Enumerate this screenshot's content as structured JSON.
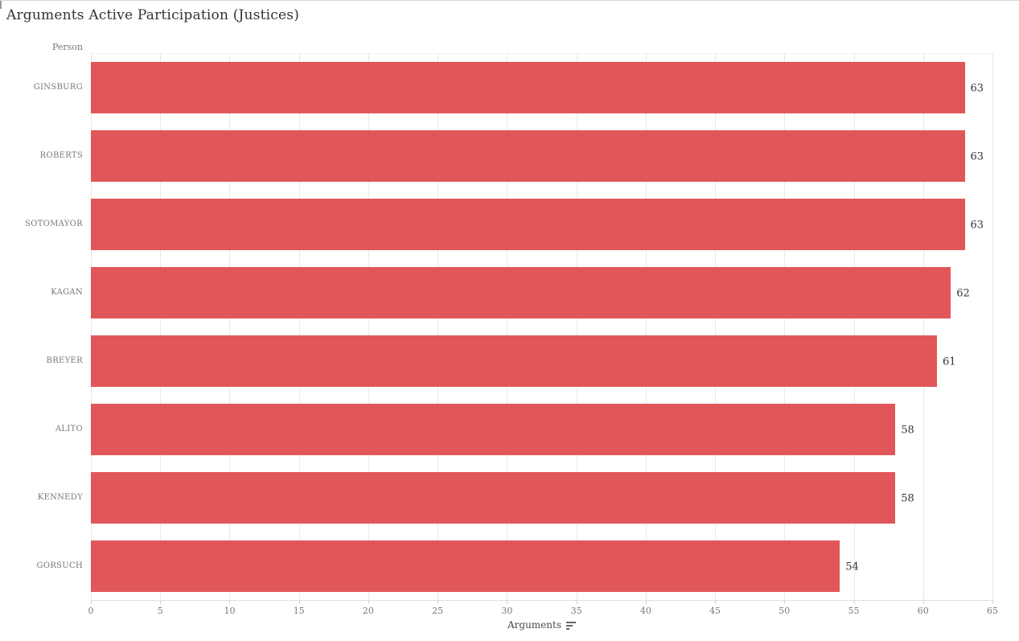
{
  "title": "Arguments Active Participation (Justices)",
  "axes": {
    "category_header": "Person",
    "value_axis_label": "Arguments",
    "sort_icon": "sort-descending-icon"
  },
  "colors": {
    "bar": "#e15759",
    "title_text": "#323232",
    "axis_text": "#787878",
    "value_label_text": "#333333",
    "gridline": "#e8e8e8"
  },
  "chart_data": {
    "type": "bar",
    "orientation": "horizontal",
    "title": "Arguments Active Participation (Justices)",
    "categories": [
      "GINSBURG",
      "ROBERTS",
      "SOTOMAYOR",
      "KAGAN",
      "BREYER",
      "ALITO",
      "KENNEDY",
      "GORSUCH"
    ],
    "values": [
      63,
      63,
      63,
      62,
      61,
      58,
      58,
      54
    ],
    "data_labels": [
      "63",
      "63",
      "63",
      "62",
      "61",
      "58",
      "58",
      "54"
    ],
    "xlabel": "Arguments",
    "ylabel": "Person",
    "xlim": [
      0,
      65
    ],
    "ticks": [
      0,
      5,
      10,
      15,
      20,
      25,
      30,
      35,
      40,
      45,
      50,
      55,
      60,
      65
    ],
    "grid": true,
    "legend": false,
    "sorted": "descending",
    "bar_color": "#e15759"
  }
}
